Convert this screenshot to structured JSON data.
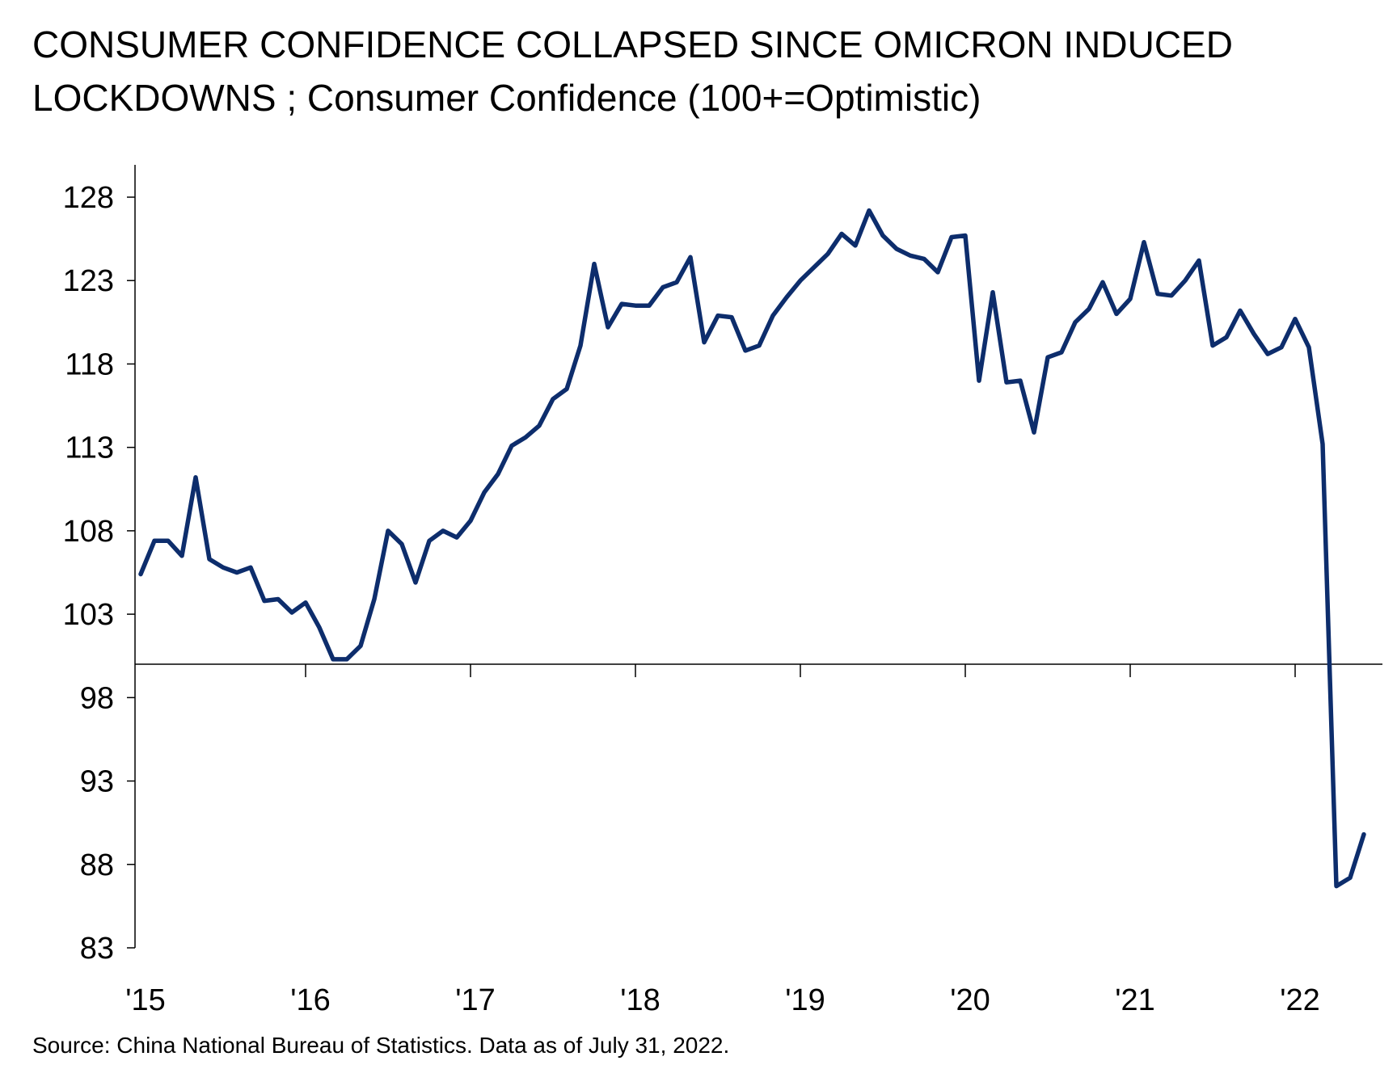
{
  "chart_data": {
    "type": "line",
    "title": "CONSUMER CONFIDENCE COLLAPSED SINCE OMICRON INDUCED LOCKDOWNS ; Consumer Confidence (100+=Optimistic)",
    "source": "Source: China National Bureau of Statistics. Data as of July 31, 2022.",
    "xlabel": "",
    "ylabel": "",
    "ylim": [
      83,
      130
    ],
    "xlim": [
      0,
      90
    ],
    "yticks": [
      128,
      123,
      118,
      113,
      108,
      103,
      98,
      93,
      88,
      83
    ],
    "ytick_labels": [
      "128",
      "123",
      "118",
      "113",
      "108",
      "103",
      "98",
      "93",
      "88",
      "83"
    ],
    "xticks": [
      0,
      12,
      24,
      36,
      48,
      60,
      72,
      84
    ],
    "xtick_labels": [
      "'15",
      "'16",
      "'17",
      "'18",
      "'19",
      "'20",
      "'21",
      "'22"
    ],
    "x_axis_crosses_at": 100,
    "grid": false,
    "line_color": "#0d2d6c",
    "series": [
      {
        "x": [
          0,
          1,
          2,
          3,
          4,
          5,
          6,
          7,
          8,
          9,
          10,
          11,
          12,
          13,
          14,
          15,
          16,
          17,
          18,
          19,
          20,
          21,
          22,
          23,
          24,
          25,
          26,
          27,
          28,
          29,
          30,
          31,
          32,
          33,
          34,
          35,
          36,
          37,
          38,
          39,
          40,
          41,
          42,
          43,
          44,
          45,
          46,
          47,
          48,
          49,
          50,
          51,
          52,
          53,
          54,
          55,
          56,
          57,
          58,
          59,
          60,
          61,
          62,
          63,
          64,
          65,
          66,
          67,
          68,
          69,
          70,
          71,
          72,
          73,
          74,
          75,
          76,
          77,
          78,
          79,
          80,
          81,
          82,
          83,
          84,
          85,
          86,
          87,
          88,
          89
        ],
        "values": [
          105.4,
          107.4,
          107.4,
          106.5,
          111.2,
          106.3,
          105.8,
          105.5,
          105.8,
          103.8,
          103.9,
          103.1,
          103.7,
          102.2,
          100.3,
          100.3,
          101.1,
          103.9,
          108.0,
          107.2,
          104.9,
          107.4,
          108.0,
          107.6,
          108.6,
          110.3,
          111.4,
          113.1,
          113.6,
          114.3,
          115.9,
          116.5,
          119.1,
          124.0,
          120.2,
          121.6,
          121.5,
          121.5,
          122.6,
          122.9,
          124.4,
          119.3,
          120.9,
          120.8,
          118.8,
          119.1,
          120.9,
          122.0,
          123.0,
          123.8,
          124.6,
          125.8,
          125.1,
          127.2,
          125.7,
          124.9,
          124.5,
          124.3,
          123.5,
          125.6,
          125.7,
          117.0,
          122.3,
          116.9,
          117.0,
          113.9,
          118.4,
          118.7,
          120.5,
          121.3,
          122.9,
          121.0,
          121.9,
          125.3,
          122.2,
          122.1,
          123.0,
          124.2,
          119.1,
          119.6,
          121.2,
          119.8,
          118.6,
          119.0,
          120.7,
          119.0,
          113.2,
          86.7,
          87.2,
          89.8
        ]
      }
    ]
  }
}
